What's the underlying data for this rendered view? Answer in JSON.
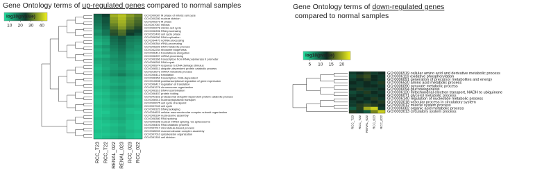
{
  "chart_data": [
    {
      "type": "heatmap",
      "title_parts": [
        "Gene Ontology terms of ",
        "up-regulated genes",
        " compared to normal samples"
      ],
      "colorbar": {
        "label": "log10(pvalue)",
        "lim": [
          5,
          45
        ],
        "ticks": [
          10,
          20,
          30,
          40
        ],
        "colors": [
          "#22e0a0",
          "#0e3a2c",
          "#f2f21e"
        ]
      },
      "columns": [
        "RCC_T23",
        "RCC_T22",
        "RENAL_022",
        "RENAL_023",
        "RCC_023",
        "RCC_022"
      ],
      "rows": [
        "GO:0000087 M phase of mitotic cell cycle",
        "GO:0000280 nuclear division",
        "GO:0000279 M phase",
        "GO:0007067 mitosis",
        "GO:0000278 mitotic cell cycle",
        "GO:0006396 RNA processing",
        "GO:0022403 cell cycle phase",
        "GO:0006260 DNA replication",
        "GO:0034470 ncRNA processing",
        "GO:0006364 rRNA processing",
        "GO:0006259 DNA metabolic process",
        "GO:0042254 ribosome biogenesis",
        "GO:0006414 translational elongation",
        "GO:0006397 mRNA processing",
        "GO:0006366 transcription from RNA polymerase II promoter",
        "GO:0006281 DNA repair",
        "GO:0006974 response to DNA damage stimulus",
        "GO:0006511 ubiquitin-dependent protein catabolic process",
        "GO:0016071 mRNA metabolic process",
        "GO:0006412 translation",
        "GO:0006351 transcription, DNA-dependent",
        "GO:0010608 posttranscriptional regulation of gene expression",
        "GO:0006417 regulation of translation",
        "GO:0051276 chromosome organization",
        "GO:0006310 DNA recombination",
        "GO:0006457 protein folding",
        "GO:0043161 proteasomal ubiquitin-dependent protein catabolic process",
        "GO:0006913 nucleocytoplasmic transport",
        "GO:0000075 cell cycle checkpoint",
        "GO:0007049 cell cycle",
        "GO:0006323 DNA packaging",
        "GO:0034621 cellular macromolecular complex subunit organization",
        "GO:0006334 nucleosome assembly",
        "GO:0008380 RNA splicing",
        "GO:0000398 nuclear mRNA splicing, via spliceosome",
        "GO:0006401 RNA catabolic process",
        "GO:0007017 microtubule-based process",
        "GO:0065003 macromolecular complex assembly",
        "GO:0007010 cytoskeleton organization",
        "GO:0051301 cell division"
      ],
      "values": [
        [
          20,
          24,
          38,
          40,
          36,
          33
        ],
        [
          19,
          22,
          36,
          39,
          34,
          31
        ],
        [
          18,
          22,
          35,
          38,
          33,
          30
        ],
        [
          17,
          21,
          33,
          37,
          32,
          29
        ],
        [
          16,
          20,
          31,
          35,
          30,
          27
        ],
        [
          14,
          18,
          28,
          31,
          26,
          24
        ],
        [
          15,
          18,
          27,
          30,
          25,
          22
        ],
        [
          12,
          14,
          20,
          22,
          18,
          17
        ],
        [
          11,
          13,
          19,
          21,
          17,
          16
        ],
        [
          10,
          12,
          18,
          20,
          16,
          15
        ],
        [
          12,
          14,
          17,
          19,
          16,
          14
        ],
        [
          10,
          12,
          16,
          18,
          15,
          14
        ],
        [
          11,
          13,
          15,
          17,
          14,
          13
        ],
        [
          10,
          11,
          14,
          16,
          13,
          12
        ],
        [
          12,
          13,
          15,
          16,
          14,
          13
        ],
        [
          11,
          12,
          14,
          15,
          13,
          12
        ],
        [
          10,
          12,
          13,
          15,
          12,
          11
        ],
        [
          9,
          11,
          13,
          14,
          12,
          11
        ],
        [
          10,
          12,
          14,
          15,
          13,
          12
        ],
        [
          11,
          13,
          15,
          17,
          14,
          13
        ],
        [
          10,
          11,
          12,
          13,
          12,
          11
        ],
        [
          9,
          10,
          12,
          13,
          11,
          10
        ],
        [
          9,
          10,
          11,
          12,
          11,
          10
        ],
        [
          10,
          11,
          13,
          14,
          12,
          11
        ],
        [
          9,
          10,
          12,
          13,
          11,
          10
        ],
        [
          8,
          9,
          11,
          12,
          10,
          9
        ],
        [
          9,
          10,
          12,
          13,
          11,
          10
        ],
        [
          8,
          9,
          11,
          12,
          10,
          9
        ],
        [
          8,
          9,
          10,
          11,
          10,
          9
        ],
        [
          9,
          10,
          11,
          12,
          11,
          10
        ],
        [
          8,
          9,
          10,
          11,
          9,
          9
        ],
        [
          8,
          8,
          10,
          11,
          9,
          8
        ],
        [
          8,
          9,
          10,
          11,
          10,
          9
        ],
        [
          9,
          10,
          11,
          12,
          10,
          9
        ],
        [
          8,
          9,
          10,
          11,
          9,
          8
        ],
        [
          8,
          8,
          9,
          10,
          9,
          8
        ],
        [
          8,
          9,
          10,
          11,
          9,
          8
        ],
        [
          9,
          9,
          10,
          11,
          10,
          9
        ],
        [
          8,
          8,
          9,
          10,
          9,
          8
        ],
        [
          8,
          9,
          10,
          11,
          9,
          8
        ]
      ]
    },
    {
      "type": "heatmap",
      "title_parts": [
        "Gene Ontology terms of ",
        "down-regulated genes",
        " compared to normal samples"
      ],
      "colorbar": {
        "label": "log10(pvalue)",
        "lim": [
          2,
          24
        ],
        "ticks": [
          5,
          10,
          15,
          20
        ],
        "colors": [
          "#22e0a0",
          "#0e2a20",
          "#f2f21e"
        ]
      },
      "columns": [
        "RCC_T23",
        "RCC_T22",
        "RENAL_022",
        "RCC_023",
        "RCC_022"
      ],
      "rows": [
        "GO:0006519 cellular amino acid and derivative metabolic process",
        "GO:0006119 oxidative phosphorylation",
        "GO:0006091 generation of precursor metabolites and energy",
        "GO:0006520 amino acid metabolic process",
        "GO:0006090 pyruvate metabolic process",
        "GO:0006094 gluconeogenesis",
        "GO:0006120 mitochondrial electron transport, NADH to ubiquinone",
        "GO:0006071 glycerol metabolic process",
        "GO:0006140 regulation of nucleotide metabolic process",
        "GO:0003018 vascular process in circulatory system",
        "GO:0003012 muscle system process",
        "GO:0006082 organic acid metabolic process",
        "GO:0003013 circulatory system process"
      ],
      "values": [
        [
          12,
          13,
          14,
          12,
          13
        ],
        [
          11,
          14,
          15,
          13,
          12
        ],
        [
          12,
          13,
          14,
          13,
          12
        ],
        [
          13,
          12,
          13,
          12,
          14
        ],
        [
          12,
          12,
          13,
          13,
          12
        ],
        [
          13,
          14,
          12,
          12,
          13
        ],
        [
          11,
          12,
          14,
          13,
          12
        ],
        [
          12,
          13,
          12,
          12,
          13
        ],
        [
          13,
          12,
          13,
          14,
          12
        ],
        [
          12,
          13,
          12,
          13,
          14
        ],
        [
          12,
          14,
          15,
          14,
          13
        ],
        [
          10,
          14,
          20,
          22,
          12
        ],
        [
          14,
          12,
          10,
          18,
          22
        ]
      ]
    }
  ]
}
